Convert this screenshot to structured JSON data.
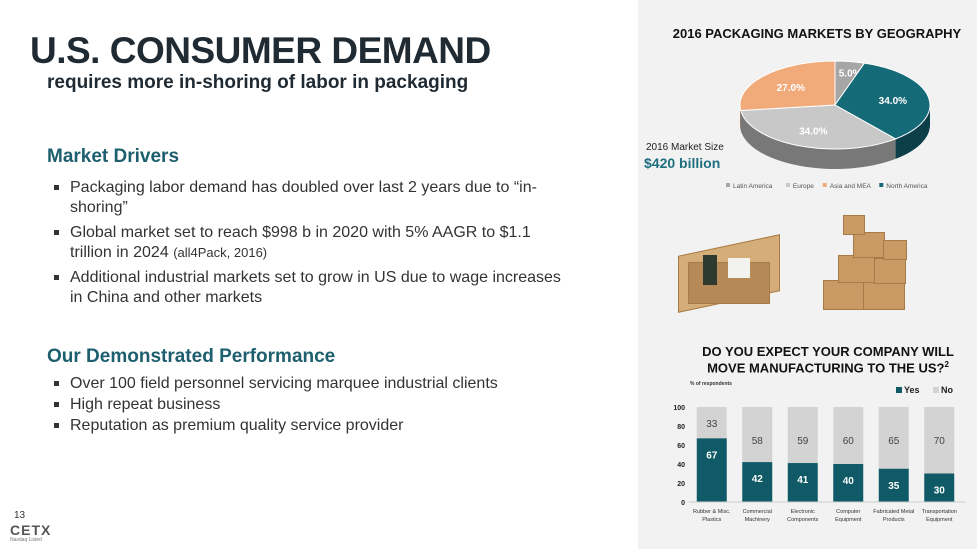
{
  "header": {
    "title": "U.S. CONSUMER DEMAND",
    "subtitle": "requires more in-shoring of labor in packaging"
  },
  "market_drivers": {
    "heading": "Market Drivers",
    "items": [
      "Packaging labor demand has doubled over last 2 years due to “in-shoring”",
      "Global market set to reach $998 b in 2020 with 5% AAGR to $1.1 trillion in 2024",
      "Additional industrial markets set to grow in US due to wage increases in China and other markets"
    ],
    "item2_source": "(all4Pack, 2016)"
  },
  "performance": {
    "heading": "Our Demonstrated Performance",
    "items": [
      "Over 100 field personnel servicing marquee industrial clients",
      "High repeat business",
      "Reputation as premium quality service provider"
    ]
  },
  "footer": {
    "page": "13",
    "logo": "CETX",
    "logo_sub": "Nasdaq Listed"
  },
  "market_size": {
    "label": "2016 Market Size",
    "value": "$420 billion"
  },
  "chart_data": [
    {
      "type": "pie",
      "title": "2016 PACKAGING MARKETS BY GEOGRAPHY",
      "legend_position": "bottom",
      "slices": [
        {
          "label": "Latin America",
          "value": 5.0,
          "text": "5.0%",
          "color": "#a6a6a6"
        },
        {
          "label": "North America",
          "value": 34.0,
          "text": "34.0%",
          "color": "#156a78"
        },
        {
          "label": "Europe",
          "value": 34.0,
          "text": "34.0%",
          "color": "#c8c8c8"
        },
        {
          "label": "Asia and MEA",
          "value": 27.0,
          "text": "27.0%",
          "color": "#f1aa7a"
        }
      ]
    },
    {
      "type": "bar",
      "stacked": true,
      "title": "DO YOU EXPECT YOUR COMPANY WILL MOVE MANUFACTURING TO THE US?",
      "title_sup": "2",
      "ylabel": "% of respondents",
      "ylim": [
        0,
        100
      ],
      "yticks": [
        0,
        20,
        40,
        60,
        80,
        100
      ],
      "legend_position": "top-right",
      "categories": [
        [
          "Rubber & Misc.",
          "Plastics"
        ],
        [
          "Commercial",
          "Machinery"
        ],
        [
          "Electronic",
          "Components"
        ],
        [
          "Computer",
          "Equipment"
        ],
        [
          "Fabricated Metal",
          "Products"
        ],
        [
          "Transportation",
          "Equipment"
        ]
      ],
      "series": [
        {
          "name": "Yes",
          "color": "#0f5a66",
          "values": [
            67,
            42,
            41,
            40,
            35,
            30
          ]
        },
        {
          "name": "No",
          "color": "#d3d3d3",
          "values": [
            33,
            58,
            59,
            60,
            65,
            70
          ]
        }
      ]
    }
  ]
}
